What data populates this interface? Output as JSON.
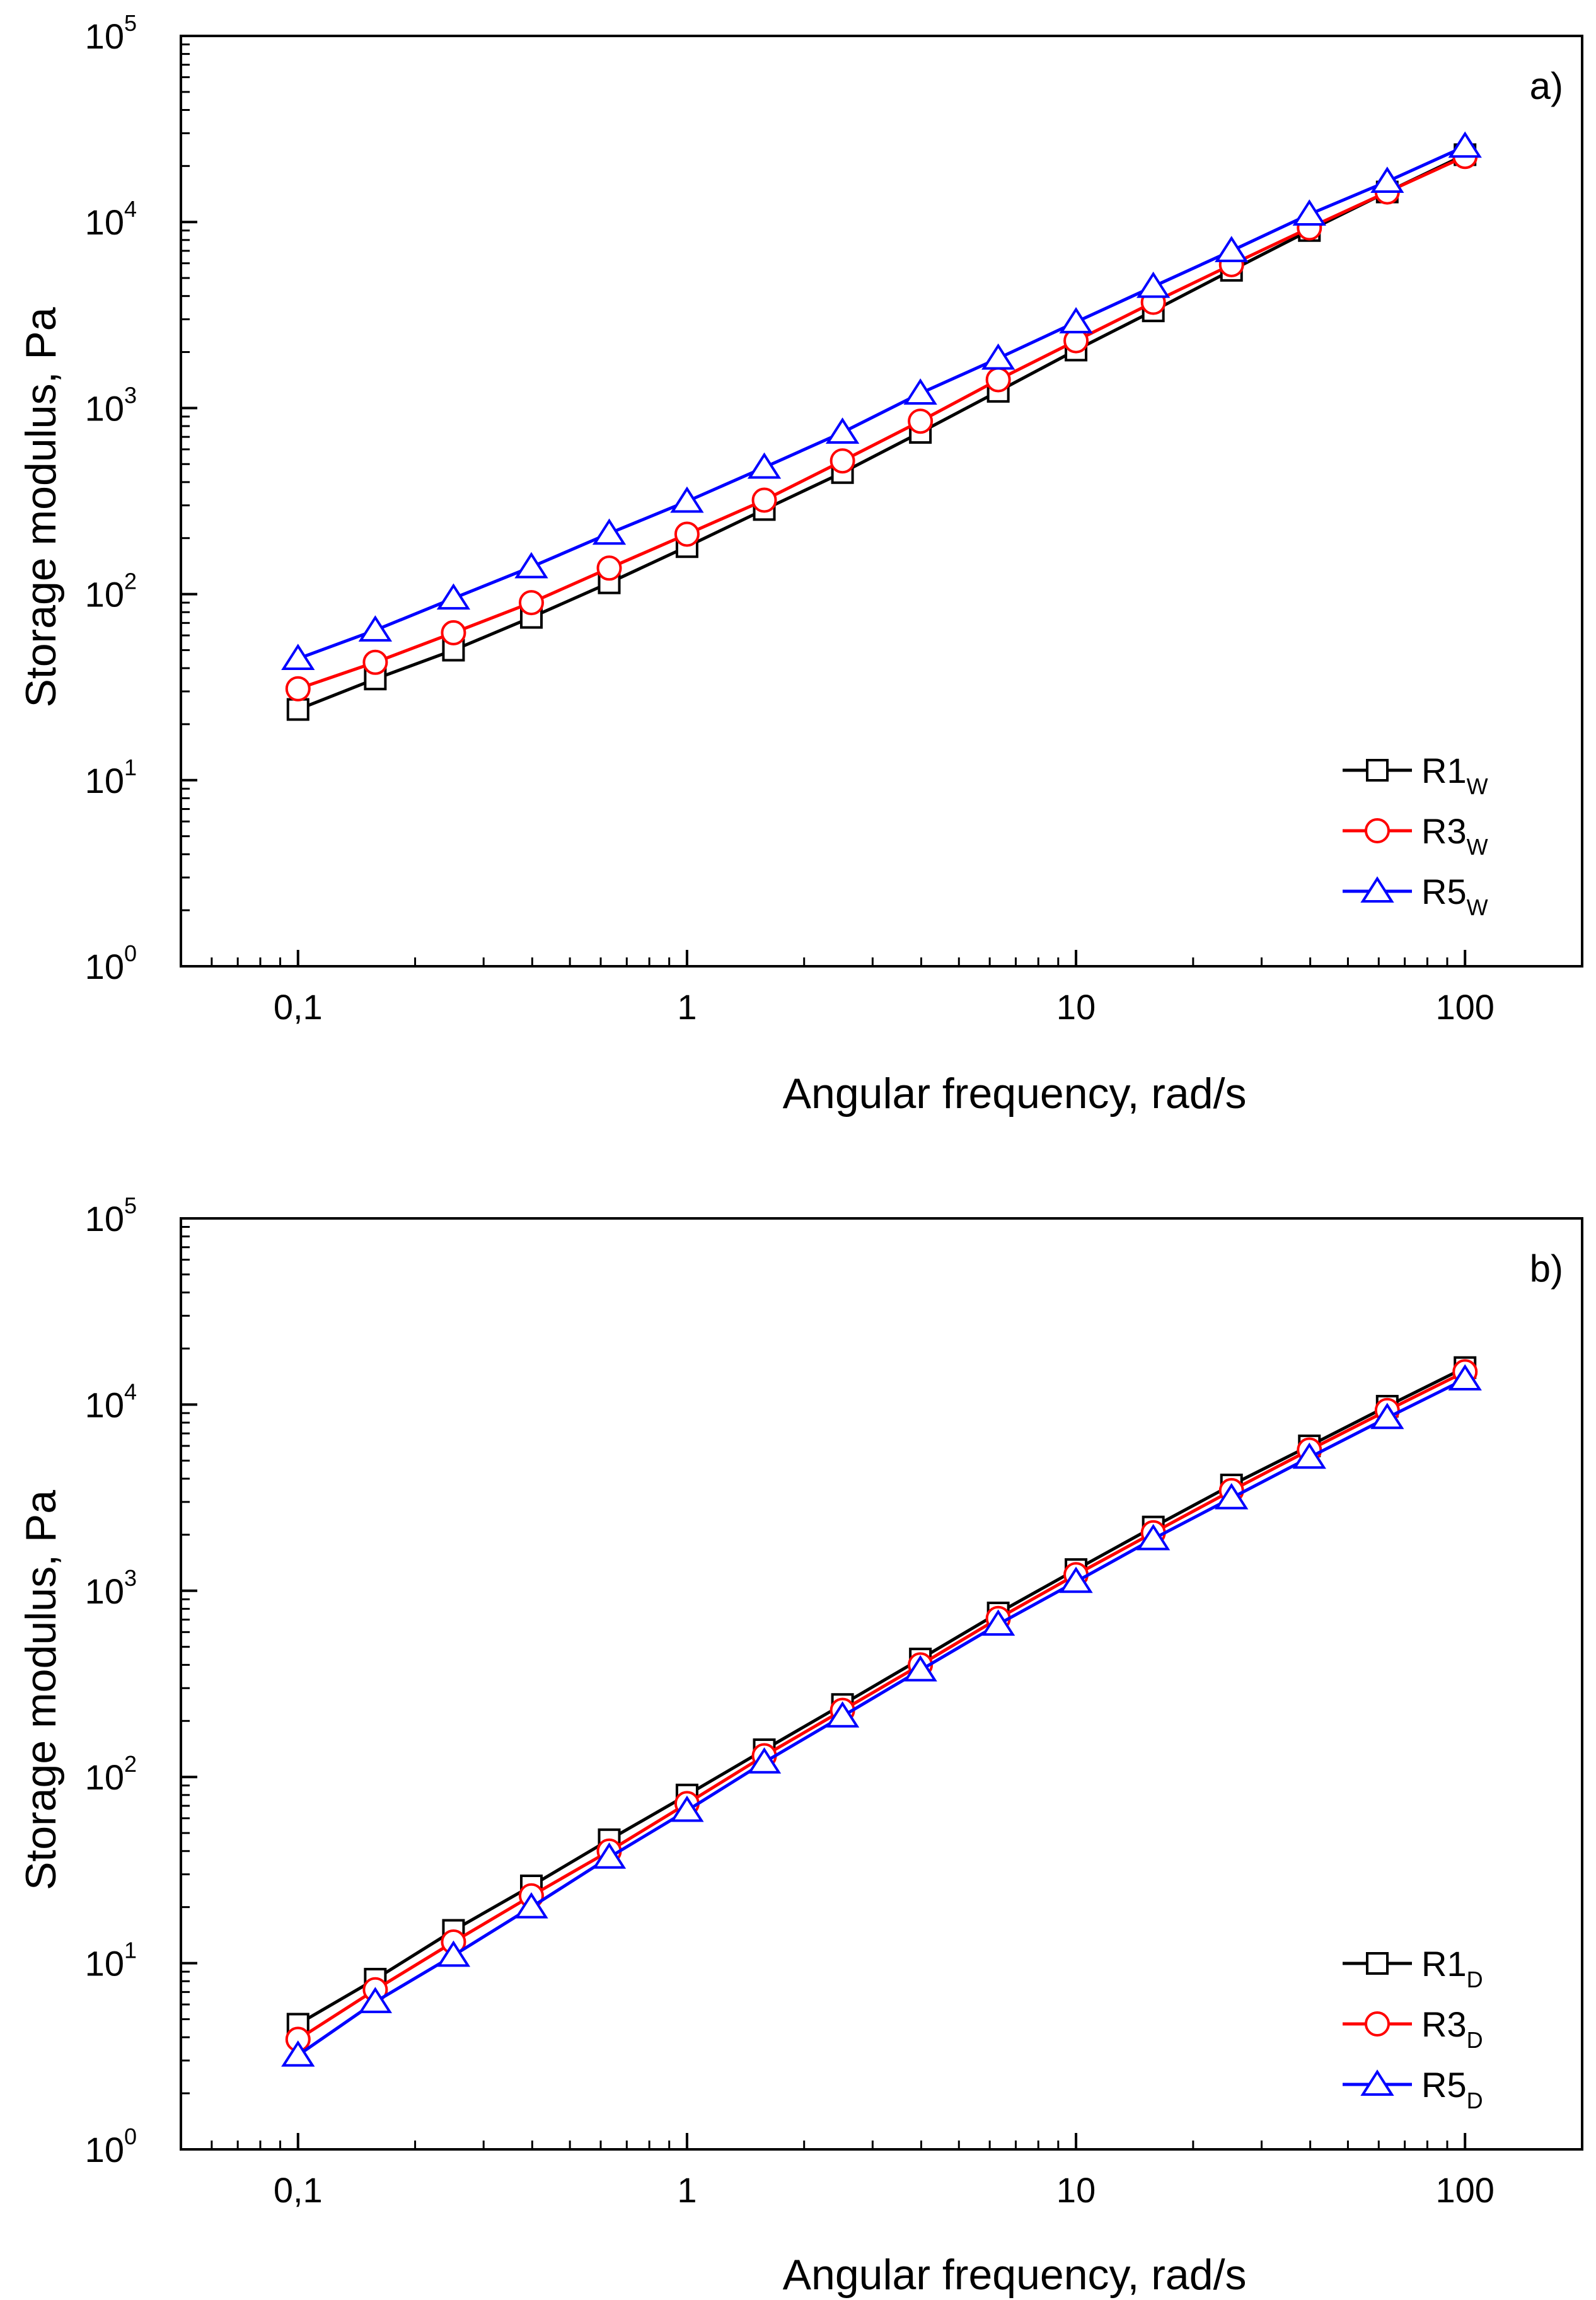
{
  "chart_data": [
    {
      "type": "line",
      "panel_label": "a)",
      "xlabel": "Angular frequency, rad/s",
      "ylabel": "Storage modulus, Pa",
      "xscale": "log",
      "yscale": "log",
      "xlim": [
        0.05,
        200
      ],
      "ylim": [
        1,
        100000
      ],
      "x_ticks": [
        {
          "value": 0.1,
          "label": "0,1"
        },
        {
          "value": 1,
          "label": "1"
        },
        {
          "value": 10,
          "label": "10"
        },
        {
          "value": 100,
          "label": "100"
        }
      ],
      "y_ticks": [
        {
          "value": 1,
          "base": "10",
          "exp": "0"
        },
        {
          "value": 10,
          "base": "10",
          "exp": "1"
        },
        {
          "value": 100,
          "base": "10",
          "exp": "2"
        },
        {
          "value": 1000,
          "base": "10",
          "exp": "3"
        },
        {
          "value": 10000,
          "base": "10",
          "exp": "4"
        },
        {
          "value": 100000,
          "base": "10",
          "exp": "5"
        }
      ],
      "legend_position": "bottom-right",
      "x": [
        0.1,
        0.158,
        0.251,
        0.398,
        0.631,
        1,
        1.58,
        2.51,
        3.98,
        6.31,
        10,
        15.8,
        25.1,
        39.8,
        63.1,
        100
      ],
      "series": [
        {
          "name": "R1",
          "sub": "W",
          "color": "#000000",
          "marker": "square",
          "values": [
            24,
            35,
            50,
            75,
            115,
            180,
            285,
            450,
            740,
            1230,
            2050,
            3330,
            5500,
            9000,
            14500,
            23000
          ]
        },
        {
          "name": "R3",
          "sub": "W",
          "color": "#ff0000",
          "marker": "circle",
          "values": [
            31,
            43,
            62,
            90,
            138,
            210,
            320,
            520,
            850,
            1420,
            2300,
            3700,
            5900,
            9300,
            14500,
            22500
          ]
        },
        {
          "name": "R5",
          "sub": "W",
          "color": "#0000ff",
          "marker": "triangle",
          "values": [
            45,
            64,
            95,
            140,
            212,
            315,
            480,
            740,
            1200,
            1850,
            2900,
            4500,
            7000,
            11000,
            16500,
            25500
          ]
        }
      ]
    },
    {
      "type": "line",
      "panel_label": "b)",
      "xlabel": "Angular frequency, rad/s",
      "ylabel": "Storage modulus, Pa",
      "xscale": "log",
      "yscale": "log",
      "xlim": [
        0.05,
        200
      ],
      "ylim": [
        1,
        100000
      ],
      "x_ticks": [
        {
          "value": 0.1,
          "label": "0,1"
        },
        {
          "value": 1,
          "label": "1"
        },
        {
          "value": 10,
          "label": "10"
        },
        {
          "value": 100,
          "label": "100"
        }
      ],
      "y_ticks": [
        {
          "value": 1,
          "base": "10",
          "exp": "0"
        },
        {
          "value": 10,
          "base": "10",
          "exp": "1"
        },
        {
          "value": 100,
          "base": "10",
          "exp": "2"
        },
        {
          "value": 1000,
          "base": "10",
          "exp": "3"
        },
        {
          "value": 10000,
          "base": "10",
          "exp": "4"
        },
        {
          "value": 100000,
          "base": "10",
          "exp": "5"
        }
      ],
      "legend_position": "bottom-right",
      "x": [
        0.1,
        0.158,
        0.251,
        0.398,
        0.631,
        1,
        1.58,
        2.51,
        3.98,
        6.31,
        10,
        15.8,
        25.1,
        39.8,
        63.1,
        100
      ],
      "series": [
        {
          "name": "R1",
          "sub": "D",
          "color": "#000000",
          "marker": "square",
          "values": [
            4.7,
            8.2,
            15,
            26,
            46,
            80,
            140,
            245,
            430,
            760,
            1300,
            2200,
            3700,
            6000,
            9800,
            15800
          ]
        },
        {
          "name": "R3",
          "sub": "D",
          "color": "#ff0000",
          "marker": "circle",
          "values": [
            3.9,
            7.2,
            13,
            23,
            40,
            72,
            130,
            228,
            400,
            710,
            1220,
            2050,
            3450,
            5700,
            9300,
            15000
          ]
        },
        {
          "name": "R5",
          "sub": "D",
          "color": "#0000ff",
          "marker": "triangle",
          "values": [
            3.2,
            6.2,
            11,
            20,
            37,
            66,
            120,
            212,
            375,
            660,
            1120,
            1900,
            3150,
            5200,
            8500,
            13700
          ]
        }
      ]
    }
  ]
}
